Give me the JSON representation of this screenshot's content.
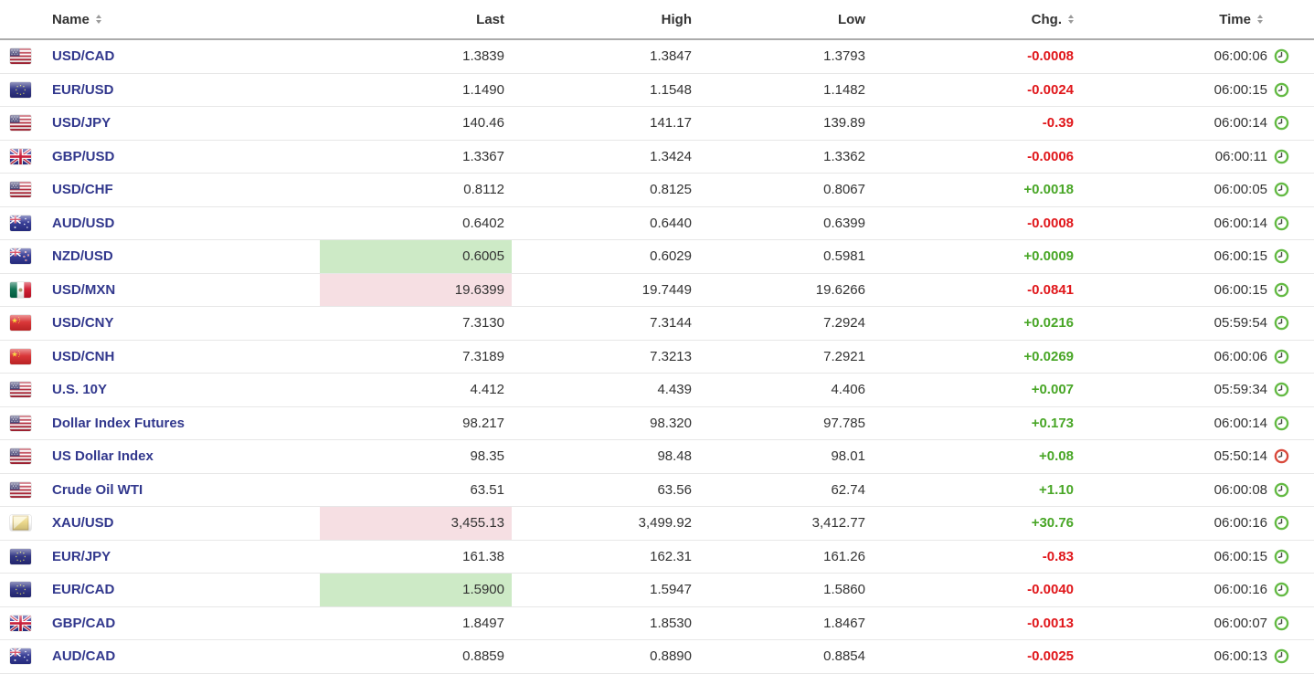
{
  "header": {
    "columns": [
      {
        "label": "Name",
        "sortable": true
      },
      {
        "label": "Last",
        "sortable": false
      },
      {
        "label": "High",
        "sortable": false
      },
      {
        "label": "Low",
        "sortable": false
      },
      {
        "label": "Chg.",
        "sortable": true
      },
      {
        "label": "Time",
        "sortable": true
      }
    ]
  },
  "rows": [
    {
      "flag": "us",
      "name": "USD/CAD",
      "last": "1.3839",
      "high": "1.3847",
      "low": "1.3793",
      "chg": "-0.0008",
      "time": "06:00:06",
      "clock": "green",
      "last_highlight": ""
    },
    {
      "flag": "eu",
      "name": "EUR/USD",
      "last": "1.1490",
      "high": "1.1548",
      "low": "1.1482",
      "chg": "-0.0024",
      "time": "06:00:15",
      "clock": "green",
      "last_highlight": ""
    },
    {
      "flag": "us",
      "name": "USD/JPY",
      "last": "140.46",
      "high": "141.17",
      "low": "139.89",
      "chg": "-0.39",
      "time": "06:00:14",
      "clock": "green",
      "last_highlight": ""
    },
    {
      "flag": "gb",
      "name": "GBP/USD",
      "last": "1.3367",
      "high": "1.3424",
      "low": "1.3362",
      "chg": "-0.0006",
      "time": "06:00:11",
      "clock": "green",
      "last_highlight": ""
    },
    {
      "flag": "us",
      "name": "USD/CHF",
      "last": "0.8112",
      "high": "0.8125",
      "low": "0.8067",
      "chg": "+0.0018",
      "time": "06:00:05",
      "clock": "green",
      "last_highlight": ""
    },
    {
      "flag": "au",
      "name": "AUD/USD",
      "last": "0.6402",
      "high": "0.6440",
      "low": "0.6399",
      "chg": "-0.0008",
      "time": "06:00:14",
      "clock": "green",
      "last_highlight": ""
    },
    {
      "flag": "nz",
      "name": "NZD/USD",
      "last": "0.6005",
      "high": "0.6029",
      "low": "0.5981",
      "chg": "+0.0009",
      "time": "06:00:15",
      "clock": "green",
      "last_highlight": "up"
    },
    {
      "flag": "mx",
      "name": "USD/MXN",
      "last": "19.6399",
      "high": "19.7449",
      "low": "19.6266",
      "chg": "-0.0841",
      "time": "06:00:15",
      "clock": "green",
      "last_highlight": "down"
    },
    {
      "flag": "cn",
      "name": "USD/CNY",
      "last": "7.3130",
      "high": "7.3144",
      "low": "7.2924",
      "chg": "+0.0216",
      "time": "05:59:54",
      "clock": "green",
      "last_highlight": ""
    },
    {
      "flag": "cn",
      "name": "USD/CNH",
      "last": "7.3189",
      "high": "7.3213",
      "low": "7.2921",
      "chg": "+0.0269",
      "time": "06:00:06",
      "clock": "green",
      "last_highlight": ""
    },
    {
      "flag": "us",
      "name": "U.S. 10Y",
      "last": "4.412",
      "high": "4.439",
      "low": "4.406",
      "chg": "+0.007",
      "time": "05:59:34",
      "clock": "green",
      "last_highlight": ""
    },
    {
      "flag": "us",
      "name": "Dollar Index Futures",
      "last": "98.217",
      "high": "98.320",
      "low": "97.785",
      "chg": "+0.173",
      "time": "06:00:14",
      "clock": "green",
      "last_highlight": ""
    },
    {
      "flag": "us",
      "name": "US Dollar Index",
      "last": "98.35",
      "high": "98.48",
      "low": "98.01",
      "chg": "+0.08",
      "time": "05:50:14",
      "clock": "red",
      "last_highlight": ""
    },
    {
      "flag": "us",
      "name": "Crude Oil WTI",
      "last": "63.51",
      "high": "63.56",
      "low": "62.74",
      "chg": "+1.10",
      "time": "06:00:08",
      "clock": "green",
      "last_highlight": ""
    },
    {
      "flag": "gold",
      "name": "XAU/USD",
      "last": "3,455.13",
      "high": "3,499.92",
      "low": "3,412.77",
      "chg": "+30.76",
      "time": "06:00:16",
      "clock": "green",
      "last_highlight": "down"
    },
    {
      "flag": "eu",
      "name": "EUR/JPY",
      "last": "161.38",
      "high": "162.31",
      "low": "161.26",
      "chg": "-0.83",
      "time": "06:00:15",
      "clock": "green",
      "last_highlight": ""
    },
    {
      "flag": "eu",
      "name": "EUR/CAD",
      "last": "1.5900",
      "high": "1.5947",
      "low": "1.5860",
      "chg": "-0.0040",
      "time": "06:00:16",
      "clock": "green",
      "last_highlight": "up"
    },
    {
      "flag": "gb",
      "name": "GBP/CAD",
      "last": "1.8497",
      "high": "1.8530",
      "low": "1.8467",
      "chg": "-0.0013",
      "time": "06:00:07",
      "clock": "green",
      "last_highlight": ""
    },
    {
      "flag": "au",
      "name": "AUD/CAD",
      "last": "0.8859",
      "high": "0.8890",
      "low": "0.8854",
      "chg": "-0.0025",
      "time": "06:00:13",
      "clock": "green",
      "last_highlight": ""
    }
  ],
  "colors": {
    "link": "#32388d",
    "positive": "#48a626",
    "negative": "#e0161a",
    "highlight_up_bg": "#cdeac6",
    "highlight_down_bg": "#f6dfe3",
    "clock_green": "#64ba44",
    "clock_red": "#d94a3c"
  }
}
